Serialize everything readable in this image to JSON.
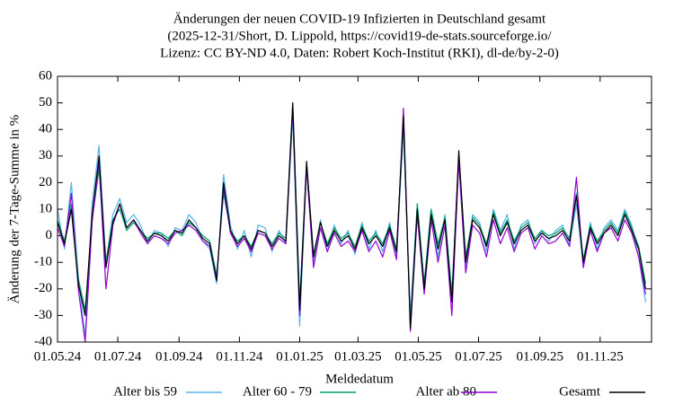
{
  "chart_data": {
    "type": "line",
    "title": [
      "Änderungen der neuen COVID-19 Infizierten in Deutschland gesamt",
      "(2025-12-31/Short, D. Lippold, https://covid19-de-stats.sourceforge.io/",
      "Lizenz: CC BY-ND 4.0, Daten: Robert Koch-Institut (RKI), dl-de/by-2-0)"
    ],
    "x_label": "Meldedatum",
    "y_label": "Änderung der 7-Tage-Summe in %",
    "xlim": [
      "01.05.24",
      "23.12.25"
    ],
    "xticks": [
      "01.05.24",
      "01.07.24",
      "01.09.24",
      "01.11.24",
      "01.01.25",
      "01.03.25",
      "01.05.25",
      "01.07.25",
      "01.09.25",
      "01.11.25"
    ],
    "ylim": [
      -40,
      60
    ],
    "yticks": [
      -40,
      -30,
      -20,
      -10,
      0,
      10,
      20,
      30,
      40,
      50,
      60
    ],
    "grid": false,
    "legend": "bottom",
    "x": [
      "01.05.24",
      "08.05.24",
      "15.05.24",
      "22.05.24",
      "29.05.24",
      "05.06.24",
      "12.06.24",
      "19.06.24",
      "26.06.24",
      "03.07.24",
      "10.07.24",
      "17.07.24",
      "24.07.24",
      "31.07.24",
      "07.08.24",
      "14.08.24",
      "21.08.24",
      "28.08.24",
      "04.09.24",
      "11.09.24",
      "18.09.24",
      "25.09.24",
      "02.10.24",
      "09.10.24",
      "16.10.24",
      "23.10.24",
      "30.10.24",
      "06.11.24",
      "13.11.24",
      "20.11.24",
      "27.11.24",
      "04.12.24",
      "11.12.24",
      "18.12.24",
      "25.12.24",
      "01.01.25",
      "08.01.25",
      "15.01.25",
      "22.01.25",
      "29.01.25",
      "05.02.25",
      "12.02.25",
      "19.02.25",
      "26.02.25",
      "05.03.25",
      "12.03.25",
      "19.03.25",
      "26.03.25",
      "02.04.25",
      "09.04.25",
      "16.04.25",
      "23.04.25",
      "30.04.25",
      "07.05.25",
      "14.05.25",
      "21.05.25",
      "28.05.25",
      "04.06.25",
      "11.06.25",
      "18.06.25",
      "25.06.25",
      "02.07.25",
      "09.07.25",
      "16.07.25",
      "23.07.25",
      "30.07.25",
      "06.08.25",
      "13.08.25",
      "20.08.25",
      "27.08.25",
      "03.09.25",
      "10.09.25",
      "17.09.25",
      "24.09.25",
      "01.10.25",
      "08.10.25",
      "15.10.25",
      "22.10.25",
      "29.10.25",
      "05.11.25",
      "12.11.25",
      "19.11.25",
      "26.11.25",
      "03.12.25",
      "10.12.25",
      "17.12.25"
    ],
    "series": [
      {
        "name": "Alter bis 59",
        "color": "#56b4e9",
        "values": [
          10,
          -5,
          20,
          -15,
          -38,
          12,
          34,
          -10,
          8,
          14,
          5,
          8,
          4,
          -3,
          2,
          1,
          -4,
          3,
          2,
          8,
          5,
          -2,
          -5,
          -18,
          23,
          4,
          -5,
          2,
          -8,
          4,
          3,
          -6,
          2,
          -3,
          45,
          -34,
          25,
          -10,
          6,
          -6,
          4,
          -3,
          2,
          -7,
          5,
          -5,
          2,
          -6,
          5,
          -8,
          40,
          -30,
          12,
          -18,
          10,
          -8,
          8,
          -22,
          30,
          -12,
          8,
          5,
          -6,
          10,
          2,
          8,
          -5,
          4,
          6,
          -3,
          2,
          -2,
          2,
          4,
          -4,
          12,
          -12,
          5,
          -5,
          3,
          6,
          2,
          10,
          4,
          -8,
          -25
        ]
      },
      {
        "name": "Alter 60 - 79",
        "color": "#009e73",
        "values": [
          6,
          -2,
          12,
          -16,
          -28,
          6,
          25,
          -10,
          6,
          10,
          2,
          5,
          2,
          -1,
          1,
          1,
          -1,
          2,
          0,
          5,
          3,
          0,
          -2,
          -15,
          16,
          2,
          -2,
          0,
          -4,
          2,
          1,
          -3,
          1,
          -1,
          50,
          -25,
          27,
          -7,
          5,
          -3,
          3,
          -1,
          1,
          -4,
          4,
          -2,
          1,
          -3,
          4,
          -5,
          42,
          -33,
          12,
          -18,
          10,
          -3,
          7,
          -22,
          30,
          -8,
          7,
          4,
          -3,
          9,
          1,
          6,
          -2,
          3,
          5,
          -1,
          2,
          0,
          1,
          3,
          -1,
          16,
          -9,
          4,
          -2,
          2,
          5,
          1,
          9,
          3,
          -4,
          -18
        ]
      },
      {
        "name": "Alter ab 80",
        "color": "#9400d3",
        "values": [
          3,
          -4,
          16,
          -20,
          -40,
          5,
          28,
          -20,
          4,
          12,
          3,
          6,
          1,
          -3,
          0,
          -1,
          -3,
          1,
          2,
          4,
          2,
          -2,
          -4,
          -16,
          18,
          1,
          -4,
          -1,
          -6,
          1,
          0,
          -5,
          -1,
          -3,
          48,
          -30,
          26,
          -12,
          3,
          -6,
          1,
          -4,
          -2,
          -6,
          2,
          -6,
          -2,
          -8,
          2,
          -9,
          48,
          -36,
          8,
          -22,
          6,
          -10,
          4,
          -30,
          28,
          -14,
          4,
          1,
          -8,
          6,
          -3,
          3,
          -6,
          1,
          3,
          -5,
          0,
          -3,
          -2,
          1,
          -4,
          22,
          -12,
          2,
          -6,
          1,
          3,
          -2,
          6,
          1,
          -8,
          -22
        ]
      },
      {
        "name": "Gesamt",
        "color": "#000000",
        "values": [
          5,
          -3,
          10,
          -18,
          -30,
          8,
          30,
          -12,
          5,
          12,
          3,
          6,
          2,
          -2,
          1,
          0,
          -2,
          2,
          1,
          6,
          3,
          -1,
          -3,
          -17,
          20,
          2,
          -3,
          0,
          -5,
          2,
          1,
          -4,
          0,
          -2,
          50,
          -28,
          28,
          -8,
          5,
          -4,
          2,
          -2,
          0,
          -5,
          3,
          -3,
          0,
          -4,
          3,
          -6,
          45,
          -35,
          10,
          -20,
          8,
          -5,
          6,
          -25,
          32,
          -10,
          6,
          3,
          -4,
          8,
          0,
          5,
          -3,
          2,
          4,
          -2,
          1,
          -1,
          0,
          2,
          -2,
          15,
          -10,
          3,
          -3,
          1,
          4,
          0,
          8,
          2,
          -5,
          -20
        ]
      }
    ]
  }
}
